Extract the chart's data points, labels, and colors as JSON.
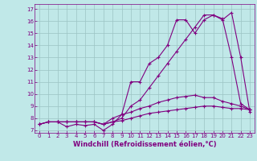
{
  "xlabel": "Windchill (Refroidissement éolien,°C)",
  "xlim": [
    -0.5,
    23.5
  ],
  "ylim": [
    6.8,
    17.4
  ],
  "xticks": [
    0,
    1,
    2,
    3,
    4,
    5,
    6,
    7,
    8,
    9,
    10,
    11,
    12,
    13,
    14,
    15,
    16,
    17,
    18,
    19,
    20,
    21,
    22,
    23
  ],
  "yticks": [
    7,
    8,
    9,
    10,
    11,
    12,
    13,
    14,
    15,
    16,
    17
  ],
  "bg_color": "#c0e8e8",
  "line_color": "#800080",
  "grid_color": "#9cc4c4",
  "line1_x": [
    2,
    3,
    4,
    5,
    6,
    7,
    8,
    9,
    10,
    11,
    12,
    13,
    14,
    15,
    16,
    17,
    18,
    19,
    20,
    21,
    22,
    23
  ],
  "line1_y": [
    7.7,
    7.3,
    7.5,
    7.4,
    7.5,
    7.0,
    7.5,
    8.3,
    11.0,
    11.0,
    12.5,
    13.0,
    14.0,
    16.1,
    16.1,
    15.0,
    16.1,
    16.5,
    16.1,
    16.7,
    13.0,
    8.5
  ],
  "line2_x": [
    0,
    1,
    2,
    3,
    4,
    5,
    6,
    7,
    8,
    9,
    10,
    11,
    12,
    13,
    14,
    15,
    16,
    17,
    18,
    19,
    20,
    21,
    22,
    23
  ],
  "line2_y": [
    7.5,
    7.7,
    7.7,
    7.7,
    7.7,
    7.7,
    7.7,
    7.5,
    7.7,
    8.0,
    9.0,
    9.5,
    10.5,
    11.5,
    12.5,
    13.5,
    14.5,
    15.5,
    16.5,
    16.5,
    16.2,
    13.0,
    9.2,
    8.7
  ],
  "line3_x": [
    0,
    1,
    2,
    3,
    4,
    5,
    6,
    7,
    8,
    9,
    10,
    11,
    12,
    13,
    14,
    15,
    16,
    17,
    18,
    19,
    20,
    21,
    22,
    23
  ],
  "line3_y": [
    7.5,
    7.7,
    7.7,
    7.7,
    7.7,
    7.7,
    7.7,
    7.5,
    8.0,
    8.3,
    8.5,
    8.8,
    9.0,
    9.3,
    9.5,
    9.7,
    9.8,
    9.9,
    9.7,
    9.7,
    9.4,
    9.2,
    9.0,
    8.7
  ],
  "line4_x": [
    0,
    1,
    2,
    3,
    4,
    5,
    6,
    7,
    8,
    9,
    10,
    11,
    12,
    13,
    14,
    15,
    16,
    17,
    18,
    19,
    20,
    21,
    22,
    23
  ],
  "line4_y": [
    7.5,
    7.7,
    7.7,
    7.7,
    7.7,
    7.7,
    7.7,
    7.5,
    7.7,
    7.8,
    8.0,
    8.2,
    8.4,
    8.5,
    8.6,
    8.7,
    8.8,
    8.9,
    9.0,
    9.0,
    8.9,
    8.8,
    8.8,
    8.7
  ],
  "marker": "+",
  "markersize": 3,
  "linewidth": 0.8,
  "tick_fontsize": 5.0,
  "xlabel_fontsize": 6.0,
  "font_color": "#800080"
}
